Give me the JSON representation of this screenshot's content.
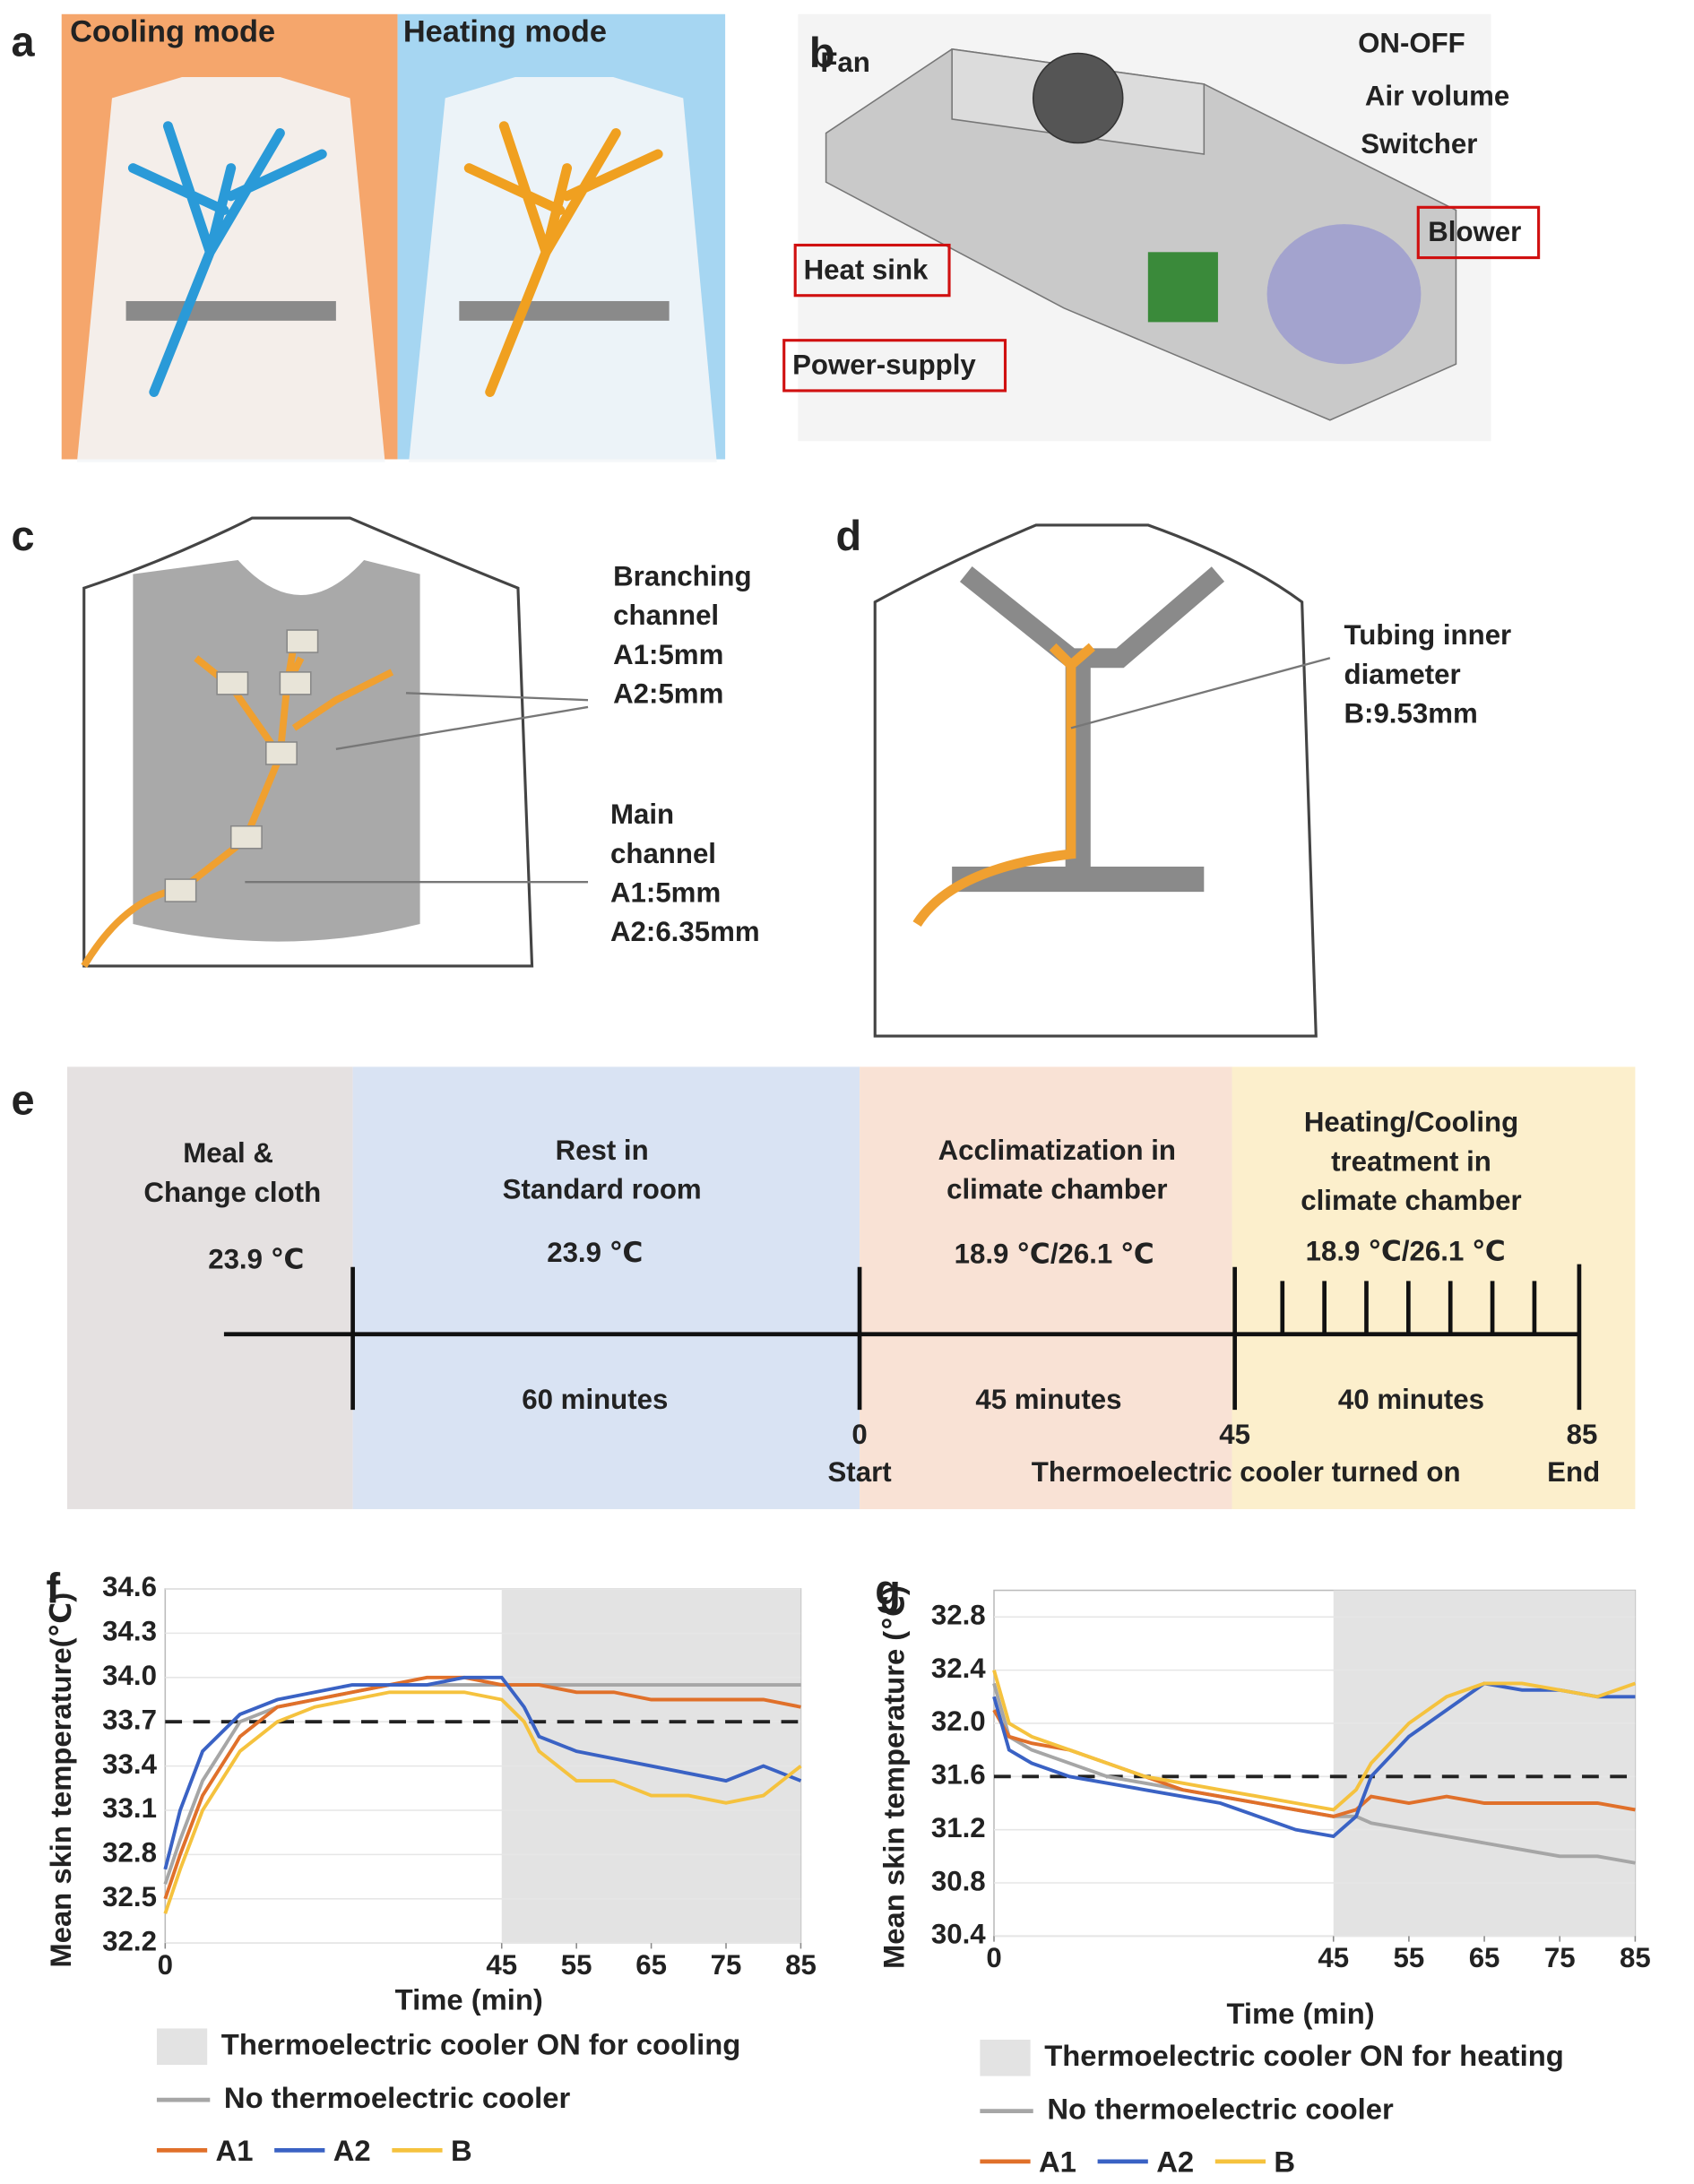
{
  "panels": {
    "a": {
      "letter": "a",
      "left": "Cooling mode",
      "right": "Heating mode"
    },
    "b": {
      "letter": "b",
      "labels": [
        "Fan",
        "ON-OFF",
        "Air volume",
        "Switcher",
        "Blower",
        "Heat sink",
        "Power-supply"
      ]
    },
    "c": {
      "letter": "c",
      "branch": [
        "Branching",
        "channel",
        "A1:5mm",
        "A2:5mm"
      ],
      "main": [
        "Main",
        "channel",
        "A1:5mm",
        "A2:6.35mm"
      ]
    },
    "d": {
      "letter": "d",
      "tubing": [
        "Tubing inner",
        "diameter",
        "B:9.53mm"
      ]
    },
    "e": {
      "letter": "e",
      "stages": [
        [
          "Meal &",
          "Change cloth",
          "23.9 ℃"
        ],
        [
          "Rest in",
          "Standard room",
          "23.9 ℃"
        ],
        [
          "Acclimatization in",
          "climate chamber",
          "18.9 ℃/26.1 ℃"
        ],
        [
          "Heating/Cooling",
          "treatment in",
          "climate chamber",
          "18.9 ℃/26.1 ℃"
        ]
      ],
      "durations": [
        "60 minutes",
        "45 minutes",
        "40 minutes"
      ],
      "marks": [
        "0",
        "Start",
        "45",
        "Thermoelectric cooler turned on",
        "85",
        "End"
      ]
    }
  },
  "chart_data": [
    {
      "type": "line",
      "letter": "f",
      "y_label": "Mean skin temperature(℃)",
      "x_label": "Time (min)",
      "x": [
        0,
        2,
        5,
        10,
        15,
        20,
        25,
        30,
        35,
        40,
        45,
        48,
        50,
        55,
        60,
        65,
        70,
        75,
        80,
        85
      ],
      "xlim": [
        0,
        85
      ],
      "xticks": [
        0,
        45,
        55,
        65,
        75,
        85
      ],
      "ylim": [
        32.2,
        34.6
      ],
      "yticks": [
        32.2,
        32.5,
        32.8,
        33.1,
        33.4,
        33.7,
        {
          "value": 34.0,
          "label": "34.0"
        },
        34.3,
        34.6
      ],
      "grid": true,
      "reference_line": 33.7,
      "shade": [
        45,
        85
      ],
      "shade_label": "Thermoelectric cooler ON for cooling",
      "series": [
        {
          "name": "No thermoelectric cooler",
          "color": "#a6a6a6",
          "values": [
            32.6,
            32.9,
            33.3,
            33.7,
            33.8,
            33.85,
            33.9,
            33.95,
            33.95,
            33.95,
            33.95,
            33.95,
            33.95,
            33.95,
            33.95,
            33.95,
            33.95,
            33.95,
            33.95,
            33.95
          ]
        },
        {
          "name": "A1",
          "color": "#e0702a",
          "values": [
            32.5,
            32.8,
            33.2,
            33.6,
            33.8,
            33.85,
            33.9,
            33.95,
            34.0,
            34.0,
            33.95,
            33.95,
            33.95,
            33.9,
            33.9,
            33.85,
            33.85,
            33.85,
            33.85,
            33.8
          ]
        },
        {
          "name": "A2",
          "color": "#3a62c4",
          "values": [
            32.7,
            33.1,
            33.5,
            33.75,
            33.85,
            33.9,
            33.95,
            33.95,
            33.95,
            34.0,
            34.0,
            33.8,
            33.6,
            33.5,
            33.45,
            33.4,
            33.35,
            33.3,
            33.4,
            33.3
          ]
        },
        {
          "name": "B",
          "color": "#f5c23e",
          "values": [
            32.4,
            32.7,
            33.1,
            33.5,
            33.7,
            33.8,
            33.85,
            33.9,
            33.9,
            33.9,
            33.85,
            33.7,
            33.5,
            33.3,
            33.3,
            33.2,
            33.2,
            33.15,
            33.2,
            33.4
          ]
        }
      ]
    },
    {
      "type": "line",
      "letter": "g",
      "y_label": "Mean skin temperature (℃)",
      "x_label": "Time (min)",
      "x": [
        0,
        2,
        5,
        10,
        15,
        20,
        25,
        30,
        35,
        40,
        45,
        48,
        50,
        55,
        60,
        65,
        70,
        75,
        80,
        85
      ],
      "xlim": [
        0,
        85
      ],
      "xticks": [
        0,
        45,
        55,
        65,
        75,
        85
      ],
      "ylim": [
        30.4,
        33.0
      ],
      "yticks": [
        30.4,
        30.8,
        31.2,
        31.6,
        {
          "value": 32.0,
          "label": "32.0"
        },
        32.4,
        32.8
      ],
      "grid": true,
      "reference_line": 31.6,
      "shade": [
        45,
        85
      ],
      "shade_label": "Thermoelectric cooler ON for heating",
      "series": [
        {
          "name": "No thermoelectric cooler",
          "color": "#a6a6a6",
          "values": [
            32.3,
            31.9,
            31.8,
            31.7,
            31.6,
            31.55,
            31.5,
            31.45,
            31.4,
            31.35,
            31.3,
            31.3,
            31.25,
            31.2,
            31.15,
            31.1,
            31.05,
            31.0,
            31.0,
            30.95
          ]
        },
        {
          "name": "A1",
          "color": "#e0702a",
          "values": [
            32.1,
            31.9,
            31.85,
            31.8,
            31.7,
            31.6,
            31.5,
            31.45,
            31.4,
            31.35,
            31.3,
            31.35,
            31.45,
            31.4,
            31.45,
            31.4,
            31.4,
            31.4,
            31.4,
            31.35
          ]
        },
        {
          "name": "A2",
          "color": "#3a62c4",
          "values": [
            32.2,
            31.8,
            31.7,
            31.6,
            31.55,
            31.5,
            31.45,
            31.4,
            31.3,
            31.2,
            31.15,
            31.3,
            31.6,
            31.9,
            32.1,
            32.3,
            32.25,
            32.25,
            32.2,
            32.2
          ]
        },
        {
          "name": "B",
          "color": "#f5c23e",
          "values": [
            32.4,
            32.0,
            31.9,
            31.8,
            31.7,
            31.6,
            31.55,
            31.5,
            31.45,
            31.4,
            31.35,
            31.5,
            31.7,
            32.0,
            32.2,
            32.3,
            32.3,
            32.25,
            32.2,
            32.3
          ]
        }
      ]
    }
  ]
}
